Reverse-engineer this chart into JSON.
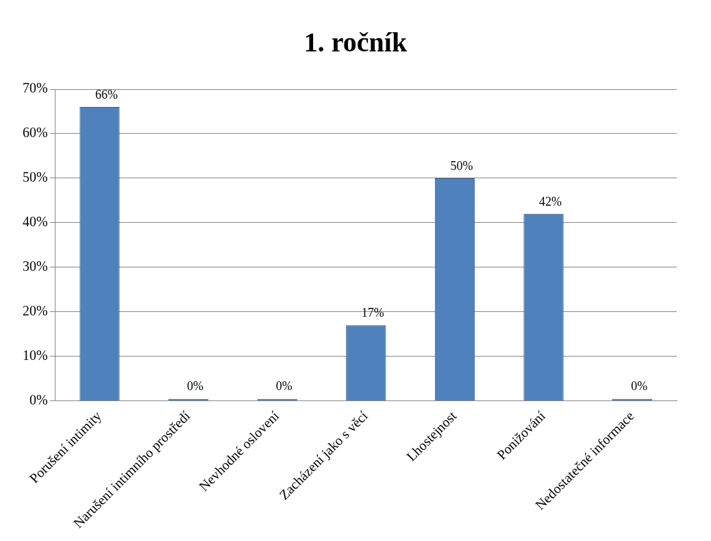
{
  "chart_data": {
    "type": "bar",
    "title": "1. ročník",
    "categories": [
      "Porušení intimity",
      "Narušení intimního prostředí",
      "Nevhodné oslovení",
      "Zacházení jako s věcí",
      "Lhostejnost",
      "Ponižování",
      "Nedostatečné informace"
    ],
    "values": [
      66,
      0,
      0,
      17,
      50,
      42,
      0
    ],
    "value_labels": [
      "66%",
      "0%",
      "0%",
      "17%",
      "50%",
      "42%",
      "0%"
    ],
    "color": "#4f81bd",
    "ylim": [
      0,
      70
    ],
    "yticks": [
      {
        "value": 0,
        "label": "0%"
      },
      {
        "value": 10,
        "label": "10%"
      },
      {
        "value": 20,
        "label": "20%"
      },
      {
        "value": 30,
        "label": "30%"
      },
      {
        "value": 40,
        "label": "40%"
      },
      {
        "value": 50,
        "label": "50%"
      },
      {
        "value": 60,
        "label": "60%"
      },
      {
        "value": 70,
        "label": "70%"
      }
    ],
    "grid": "y",
    "legend": false
  }
}
